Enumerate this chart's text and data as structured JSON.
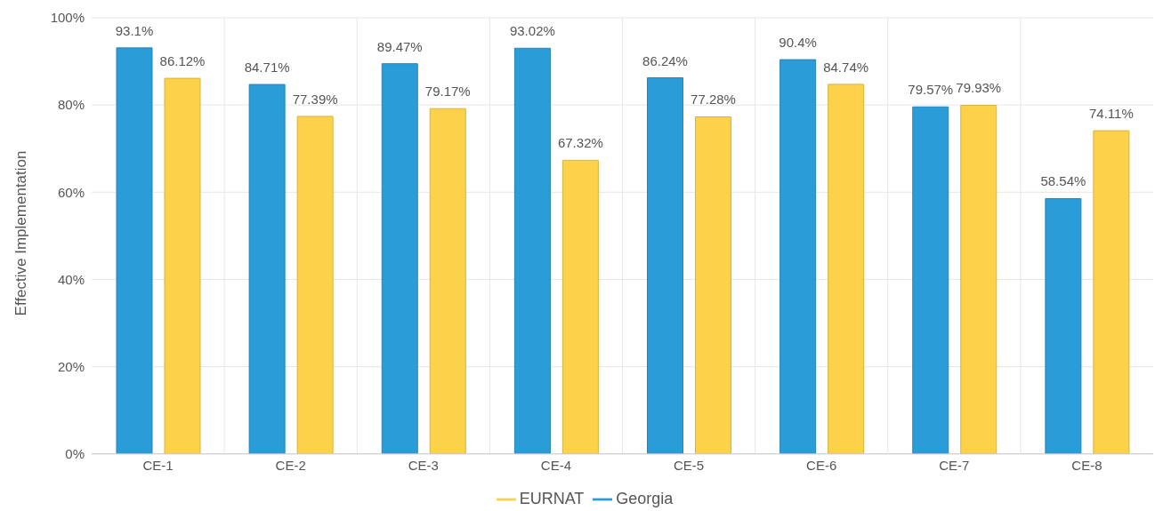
{
  "chart_data": {
    "type": "bar",
    "ylabel": "Effective Implementation",
    "categories": [
      "CE-1",
      "CE-2",
      "CE-3",
      "CE-4",
      "CE-5",
      "CE-6",
      "CE-7",
      "CE-8"
    ],
    "series": [
      {
        "name": "Georgia",
        "color": "#2a9dd8",
        "values": [
          93.1,
          84.71,
          89.47,
          93.02,
          86.24,
          90.4,
          79.57,
          58.54
        ],
        "value_labels": [
          "93.1%",
          "84.71%",
          "89.47%",
          "93.02%",
          "86.24%",
          "90.4%",
          "79.57%",
          "58.54%"
        ]
      },
      {
        "name": "EURNAT",
        "color": "#fdd24b",
        "values": [
          86.12,
          77.39,
          79.17,
          67.32,
          77.28,
          84.74,
          79.93,
          74.11
        ],
        "value_labels": [
          "86.12%",
          "77.39%",
          "79.17%",
          "67.32%",
          "77.28%",
          "84.74%",
          "79.93%",
          "74.11%"
        ]
      }
    ],
    "ylim": [
      0,
      100
    ],
    "yticks": [
      {
        "value": 0,
        "label": "0%"
      },
      {
        "value": 20,
        "label": "20%"
      },
      {
        "value": 40,
        "label": "40%"
      },
      {
        "value": 60,
        "label": "60%"
      },
      {
        "value": 80,
        "label": "80%"
      },
      {
        "value": 100,
        "label": "100%"
      }
    ],
    "grid": true,
    "legend": "bottom"
  }
}
